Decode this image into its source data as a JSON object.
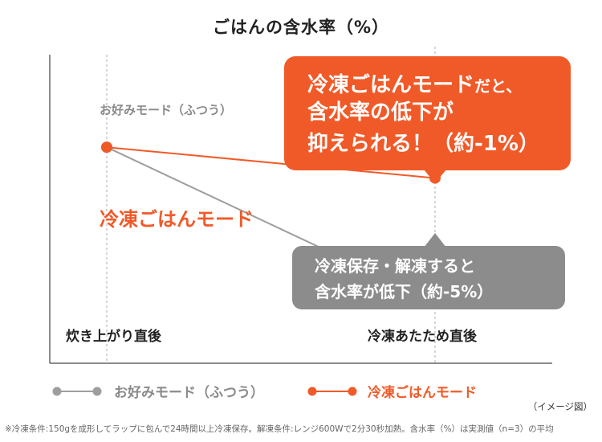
{
  "chart_data": {
    "type": "line",
    "title": "ごはんの含水率（%）",
    "categories": [
      "炊き上がり直後",
      "冷凍あたため直後"
    ],
    "series": [
      {
        "name": "お好みモード（ふつう）",
        "values": [
          100,
          95
        ],
        "color": "#9e9e9e"
      },
      {
        "name": "冷凍ごはんモード",
        "values": [
          100,
          99
        ],
        "color": "#f05a28"
      }
    ],
    "ylim": [
      93,
      103
    ],
    "grid": false,
    "legend": "bottom"
  },
  "series_labels": {
    "gray": "お好みモード（ふつう）",
    "orange": "冷凍ごはんモード"
  },
  "callouts": {
    "orange": {
      "line1_bold": "冷凍ごはんモード",
      "line1_small": "だと、",
      "line2": "含水率の低下が",
      "line3": "抑えられる！（約-1%）"
    },
    "gray": {
      "line1": "冷凍保存・解凍すると",
      "line2": "含水率が低下（約-5%）"
    }
  },
  "image_note": "（イメージ図）",
  "footnote": "※冷凍条件:150gを成形してラップに包んで24時間以上冷凍保存。解凍条件:レンジ600Wで2分30秒加熱。含水率（%）は実測値（n=3）の平均"
}
